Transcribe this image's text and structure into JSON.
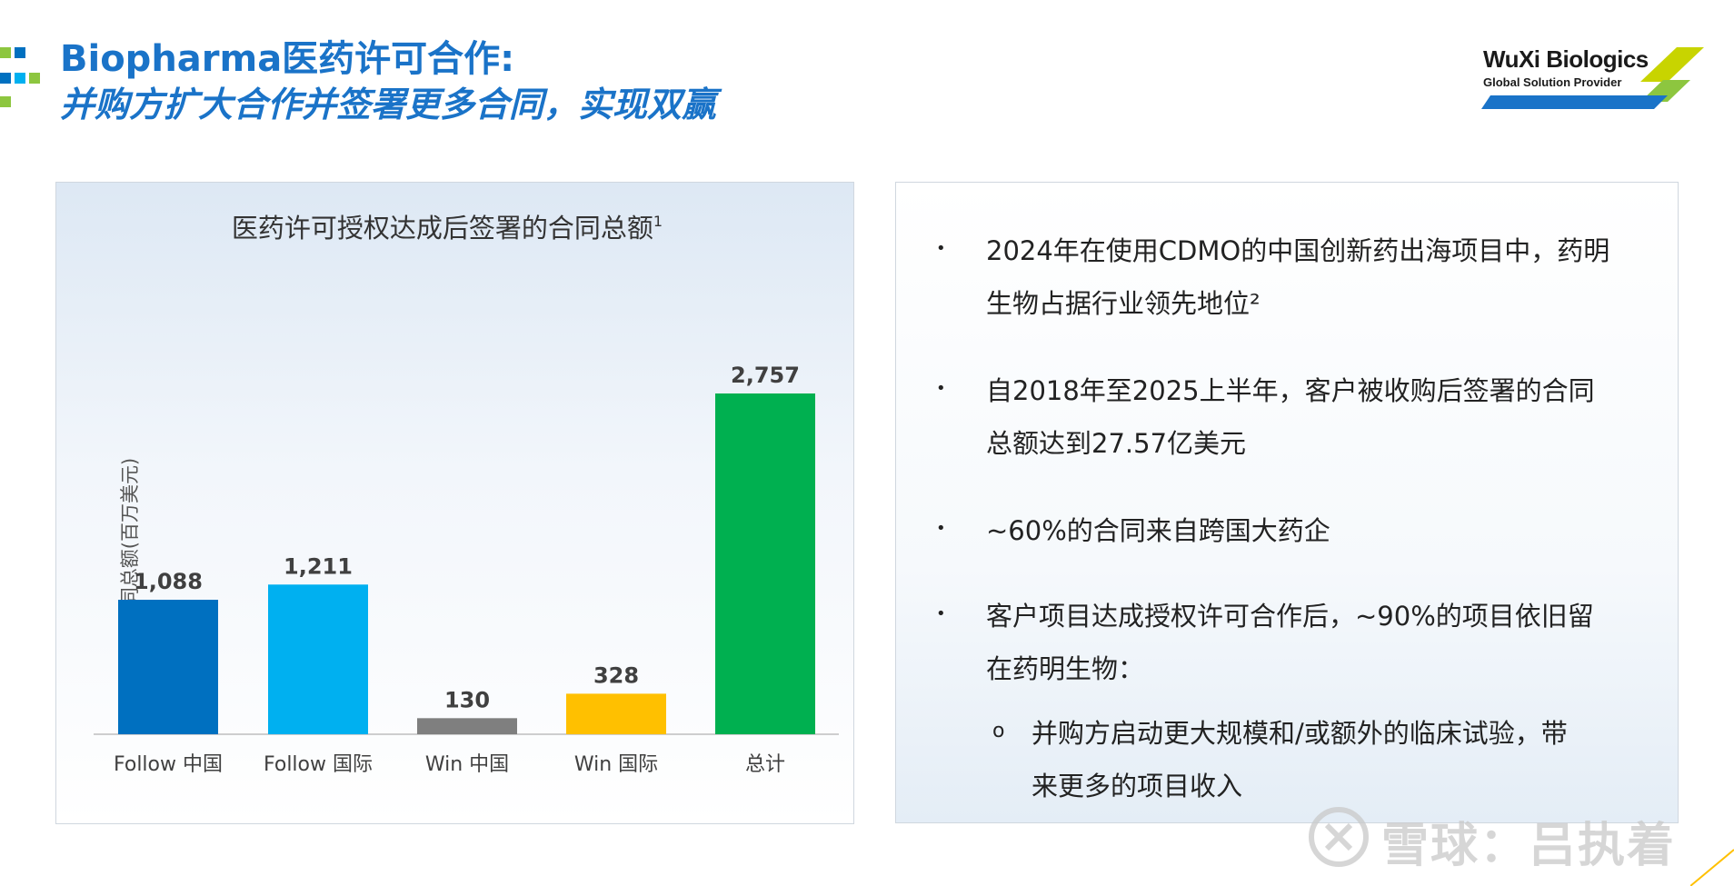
{
  "header": {
    "title_line1": "Biopharma医药许可合作:",
    "title_line2": "并购方扩大合作并签署更多合同，实现双赢",
    "logo_name": "WuXi Biologics",
    "logo_tagline": "Global Solution Provider"
  },
  "colors": {
    "title_blue": "#1a73c8",
    "follow_cn": "#0070c0",
    "follow_intl": "#00b0f0",
    "win_cn": "#7f7f7f",
    "win_intl": "#ffc000",
    "total": "#00b050"
  },
  "chart_data": {
    "type": "bar",
    "title": "医药许可授权达成后签署的合同总额",
    "title_sup": "1",
    "ylabel": "合同总额(百万美元)",
    "categories": [
      "Follow 中国",
      "Follow 国际",
      "Win 中国",
      "Win 国际",
      "总计"
    ],
    "values": [
      1088,
      1211,
      130,
      328,
      2757
    ],
    "value_labels": [
      "1,088",
      "1,211",
      "130",
      "328",
      "2,757"
    ],
    "bar_colors": [
      "#0070c0",
      "#00b0f0",
      "#7f7f7f",
      "#ffc000",
      "#00b050"
    ],
    "ylim": [
      0,
      2757
    ],
    "grid": false,
    "legend": "none"
  },
  "bullets": [
    {
      "line1": "2024年在使用CDMO的中国创新药出海项目中，药明",
      "line2": "生物占据行业领先地位²"
    },
    {
      "line1": "自2018年至2025上半年，客户被收购后签署的合同",
      "line2": "总额达到27.57亿美元"
    },
    {
      "line1": "~60%的合同来自跨国大药企",
      "line2": ""
    },
    {
      "line1": "客户项目达成授权许可合作后，~90%的项目依旧留",
      "line2": "在药明生物："
    }
  ],
  "sub_bullets": [
    {
      "line1": "并购方启动更大规模和/或额外的临床试验，带",
      "line2": "来更多的项目收入"
    }
  ],
  "bullet_glyph": "•",
  "sub_bullet_glyph": "o",
  "watermark": {
    "text": "雪球：吕执着"
  }
}
